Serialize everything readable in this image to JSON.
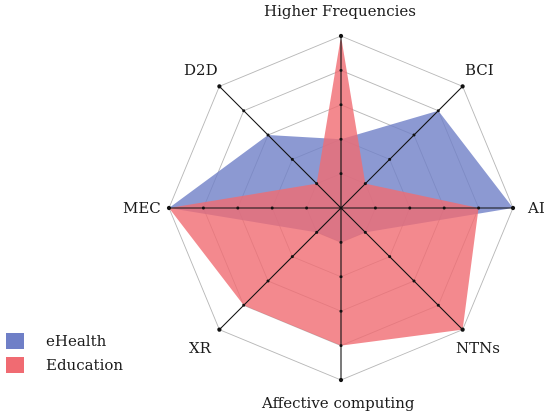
{
  "chart_data": {
    "type": "radar",
    "axes": [
      "Higher Frequencies",
      "BCI",
      "AI",
      "NTNs",
      "Affective computing",
      "XR",
      "MEC",
      "D2D"
    ],
    "range": [
      0,
      5
    ],
    "levels": 5,
    "series": [
      {
        "name": "eHealth",
        "values": [
          2,
          4,
          5,
          1,
          1,
          1,
          5,
          3
        ],
        "color": "#6f7fc7"
      },
      {
        "name": "Education",
        "values": [
          5,
          1,
          4,
          5,
          4,
          4,
          5,
          1
        ],
        "color": "#f06b72"
      }
    ],
    "grid": true
  }
}
